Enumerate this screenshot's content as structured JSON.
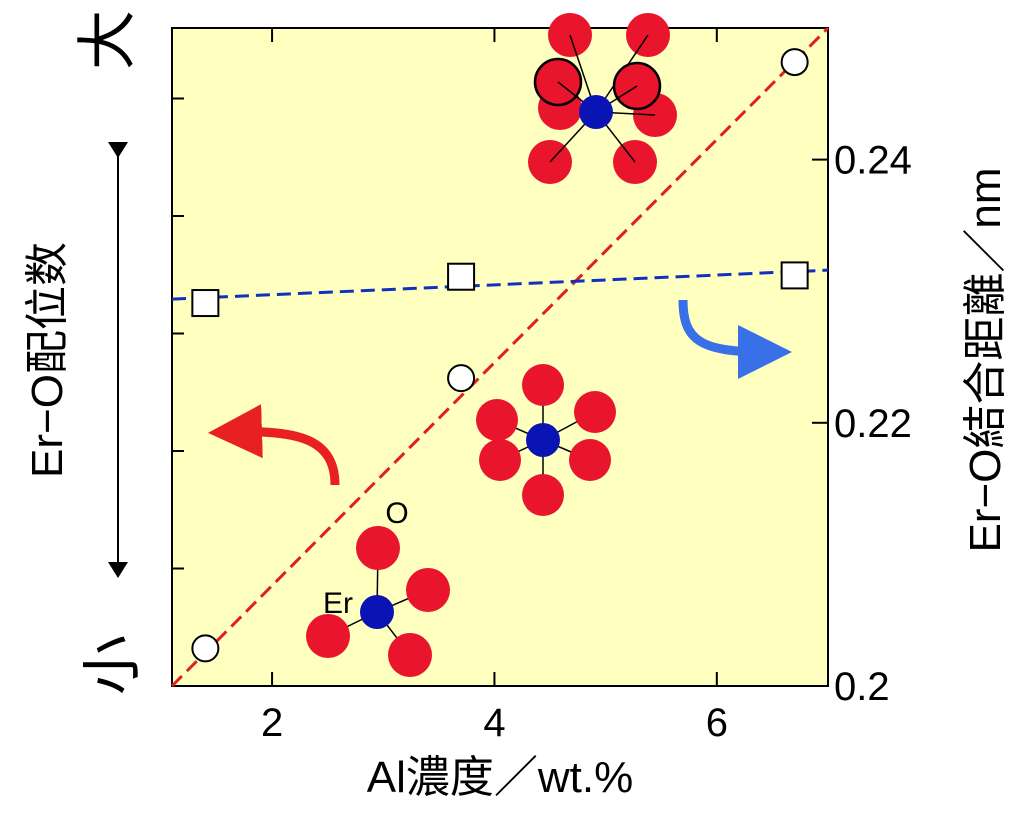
{
  "chart_data": {
    "type": "scatter",
    "xlabel": "Al濃度／wt.%",
    "ylabel": "Er−O配位数",
    "y2label": "Er−O結合距離／nm",
    "y_top_label": "大",
    "y_bottom_label": "小",
    "xlim": [
      1.1,
      7.0
    ],
    "xticks": [
      2,
      4,
      6
    ],
    "ylim": [
      0,
      5.6
    ],
    "yticks": [
      1,
      2,
      3,
      4,
      5
    ],
    "y2lim": [
      0.2,
      0.25
    ],
    "y2ticks": [
      0.2,
      0.22,
      0.24
    ],
    "background": "#ffffc0",
    "series": [
      {
        "marker": "circle",
        "color": "#ffffff",
        "axis": "y",
        "x": [
          1.4,
          3.7,
          6.7
        ],
        "values": [
          0.32,
          2.62,
          5.31
        ]
      },
      {
        "marker": "square",
        "color": "#ffffff",
        "axis": "y2",
        "x": [
          1.4,
          3.7,
          6.7
        ],
        "values": [
          0.2291,
          0.2311,
          0.2312
        ]
      }
    ],
    "fits": [
      {
        "color": "#e02020",
        "axis": "y",
        "x": [
          1.1,
          7.0
        ],
        "values": [
          0,
          5.6
        ]
      },
      {
        "color": "#1030c0",
        "axis": "y2",
        "x": [
          1.1,
          7.0
        ],
        "values": [
          0.2294,
          0.2316
        ]
      }
    ],
    "annotations": {
      "oxygen": "O",
      "erbium": "Er"
    }
  }
}
